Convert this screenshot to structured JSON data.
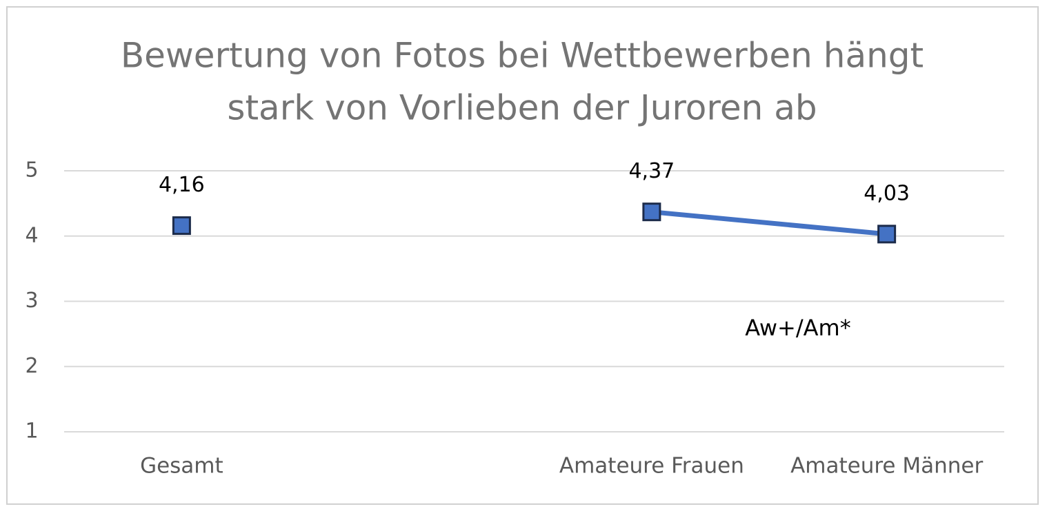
{
  "chart_data": {
    "type": "line",
    "title": [
      "Bewertung von Fotos bei Wettbewerben hängt",
      "stark von Vorlieben der Juroren ab"
    ],
    "categories": [
      "Gesamt",
      null,
      "Amateure Frauen",
      "Amateure Männer"
    ],
    "values": [
      4.16,
      null,
      4.37,
      4.03
    ],
    "value_labels": [
      "4,16",
      null,
      "4,37",
      "4,03"
    ],
    "color": "#4472c4",
    "marker_edge_color": "#1c2b4a",
    "ylim": [
      1,
      5
    ],
    "yticks": [
      1,
      2,
      3,
      4,
      5
    ],
    "grid": true,
    "annotation": "Aw+/Am*"
  }
}
